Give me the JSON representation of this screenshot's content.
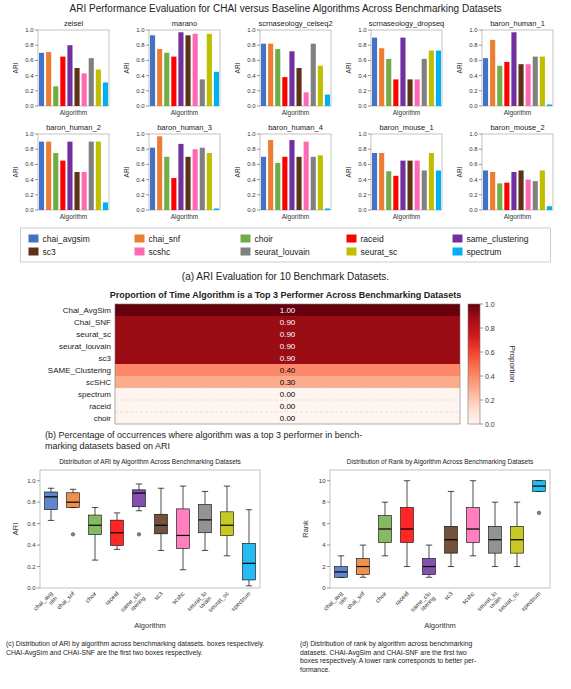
{
  "chart_data": [
    {
      "type": "bar",
      "title": "ARI Performance Evaluation for CHAI versus Baseline Algorithms Across Benchmarking Datasets",
      "caption": "(a) ARI Evaluation for 10 Benchmark Datasets.",
      "x_label": "Algorithm",
      "y_label": "ARI",
      "categories": [
        "chai_avgsim",
        "chai_snf",
        "choir",
        "raceid",
        "same_clustering",
        "sc3",
        "scshc",
        "seurat_louvain",
        "seurat_sc",
        "spectrum"
      ],
      "colors": [
        "#4472C4",
        "#ED7D31",
        "#70AD47",
        "#FF0000",
        "#7030A0",
        "#5C3317",
        "#FF69B4",
        "#808080",
        "#BFBF00",
        "#00B0F0"
      ],
      "ylim": [
        0,
        1.0
      ],
      "yticks": [
        {
          "value": 0.0,
          "label": "0.0"
        },
        0.2,
        0.4,
        0.6,
        0.8,
        {
          "value": 1.0,
          "label": "1.0"
        }
      ],
      "tick_labels": "y",
      "legend": "bottom",
      "panels": [
        {
          "title": "zeisel",
          "values": [
            0.7,
            0.71,
            0.26,
            0.65,
            0.8,
            0.5,
            0.43,
            0.63,
            0.48,
            0.31
          ]
        },
        {
          "title": "marano",
          "values": [
            0.93,
            0.75,
            0.7,
            0.65,
            0.97,
            0.93,
            0.95,
            0.35,
            0.95,
            0.45
          ]
        },
        {
          "title": "scrnaseology_celseq2",
          "values": [
            0.82,
            0.82,
            0.75,
            0.38,
            0.72,
            0.5,
            0.18,
            0.82,
            0.53,
            0.15
          ]
        },
        {
          "title": "scrnaseology_dropseq",
          "values": [
            0.9,
            0.76,
            0.62,
            0.35,
            0.9,
            0.35,
            0.35,
            0.62,
            0.73,
            0.73
          ]
        },
        {
          "title": "baron_human_1",
          "values": [
            0.63,
            0.87,
            0.53,
            0.58,
            0.97,
            0.55,
            0.55,
            0.65,
            0.65,
            0.02
          ]
        },
        {
          "title": "baron_human_2",
          "values": [
            0.9,
            0.9,
            0.75,
            0.65,
            0.9,
            0.5,
            0.5,
            0.9,
            0.9,
            0.1
          ]
        },
        {
          "title": "baron_human_3",
          "values": [
            0.82,
            0.97,
            0.7,
            0.42,
            0.87,
            0.7,
            0.8,
            0.82,
            0.75,
            0.02
          ]
        },
        {
          "title": "baron_human_4",
          "values": [
            0.7,
            0.92,
            0.62,
            0.7,
            0.92,
            0.7,
            0.9,
            0.7,
            0.72,
            0.02
          ]
        },
        {
          "title": "baron_mouse_1",
          "values": [
            0.75,
            0.75,
            0.51,
            0.45,
            0.65,
            0.65,
            0.65,
            0.52,
            0.75,
            0.52
          ]
        },
        {
          "title": "baron_mouse_2",
          "values": [
            0.52,
            0.5,
            0.35,
            0.36,
            0.5,
            0.52,
            0.4,
            0.38,
            0.52,
            0.05
          ]
        }
      ]
    },
    {
      "type": "heatmap",
      "title": "Proportion of Time Algorithm is a Top 3 Performer Across Benchmarking Datasets",
      "caption": "(b) Percentage of occurrences where algorithm was a top 3 performer in bench-\nmarking datasets based on ARI",
      "categories": [
        "Chai_AvgSim",
        "Chai_SNF",
        "seurat_sc",
        "seurat_louvain",
        "sc3",
        "SAME_Clustering",
        "scSHC",
        "spectrum",
        "raceid",
        "choir"
      ],
      "values": [
        1.0,
        0.9,
        0.9,
        0.9,
        0.9,
        0.4,
        0.3,
        0.0,
        0.0,
        0.0
      ],
      "value_labels": [
        "1.00",
        "0.90",
        "0.90",
        "0.90",
        "0.90",
        "0.40",
        "0.30",
        "0.00",
        "0.00",
        "0.00"
      ],
      "data_labels": true,
      "color_bar": {
        "label": "Proportion",
        "range": [
          0.0,
          1.0
        ],
        "ticks": [
          {
            "value": 0.0,
            "label": "0.0"
          },
          0.2,
          0.4,
          0.6,
          0.8,
          {
            "value": 1.0,
            "label": "1.0"
          }
        ]
      }
    },
    {
      "type": "box",
      "title": "Distribution of ARI by Algorithm Across Benchmarking Datasets",
      "caption": "(c) Distribution of ARI by algorithm across benchmarking datasets. boxes respectively.\nCHAI-AvgSim and CHAI-SNF are the first two boxes respectively.",
      "x_label": "Algorithm",
      "y_label": "ARI",
      "categories": [
        "chai_avg\nsim",
        "chai_snf",
        "choir",
        "raceid",
        "same_clu\nstering",
        "sc3",
        "scshc",
        "seurat_lo\nuvain",
        "seurat_sc",
        "spectrum"
      ],
      "colors": [
        "#4472C4",
        "#ED7D31",
        "#70AD47",
        "#FF0000",
        "#7030A0",
        "#5C3317",
        "#FF69B4",
        "#808080",
        "#BFBF00",
        "#00B0F0"
      ],
      "ylim": [
        0,
        1.1
      ],
      "yticks": [
        {
          "value": 0.0,
          "label": "0.0"
        },
        0.2,
        0.4,
        0.6,
        0.8,
        {
          "value": 1.0,
          "label": "1.0"
        }
      ],
      "whisker_low": [
        0.63,
        0.75,
        0.26,
        0.36,
        0.72,
        0.35,
        0.17,
        0.35,
        0.3,
        0.02
      ],
      "q1": [
        0.73,
        0.75,
        0.4975,
        0.3975,
        0.7575,
        0.505,
        0.37,
        0.515,
        0.49,
        0.075
      ],
      "median": [
        0.85,
        0.8,
        0.585,
        0.515,
        0.885,
        0.585,
        0.49,
        0.635,
        0.585,
        0.23
      ],
      "q3": [
        0.895,
        0.8875,
        0.68,
        0.6325,
        0.915,
        0.6875,
        0.7375,
        0.7775,
        0.71,
        0.415
      ],
      "whisker_high": [
        0.93,
        0.92,
        0.75,
        0.7,
        0.97,
        0.93,
        0.95,
        0.9,
        0.95,
        0.73
      ],
      "fliers": [
        [],
        [
          0.5
        ],
        [],
        [],
        [
          0.5
        ],
        [],
        [],
        [],
        [],
        []
      ]
    },
    {
      "type": "box",
      "title": "Distribution of Rank by Algorithm Across Benchmarking Datasets",
      "caption": "(d) Distribution of rank by algorithm across benchmarking\ndatasets. CHAI-AvgSim and CHAI-SNF are the first two\nboxes respectively. A lower rank corresponds to better per-\nformance.",
      "x_label": "Algorithm",
      "y_label": "Rank",
      "categories": [
        "chai_avg\nsim",
        "chai_snf",
        "choir",
        "raceid",
        "same_clu\nstering",
        "sc3",
        "scshc",
        "seurat_lo\nuvain",
        "seurat_sc",
        "spectrum"
      ],
      "colors": [
        "#4472C4",
        "#ED7D31",
        "#70AD47",
        "#FF0000",
        "#7030A0",
        "#5C3317",
        "#FF69B4",
        "#808080",
        "#BFBF00",
        "#00B0F0"
      ],
      "ylim": [
        0,
        11
      ],
      "yticks": [
        0,
        2,
        4,
        6,
        8,
        10
      ],
      "whisker_low": [
        1,
        1,
        3,
        2,
        1,
        2,
        3,
        2,
        2,
        9
      ],
      "q1": [
        1,
        1.25,
        4.25,
        4.25,
        1.25,
        3.25,
        4.25,
        3.25,
        3.25,
        9
      ],
      "median": [
        1.5,
        2,
        5.5,
        5.5,
        2,
        4.5,
        5.5,
        4.5,
        4.5,
        9.5
      ],
      "q3": [
        2,
        2.75,
        6.75,
        7.5,
        2.75,
        5.75,
        7.5,
        5.75,
        5.75,
        10
      ],
      "whisker_high": [
        3,
        4,
        8,
        10,
        4,
        9,
        10,
        8,
        8,
        10
      ],
      "fliers": [
        [],
        [],
        [],
        [],
        [],
        [],
        [],
        [],
        [],
        [
          7
        ]
      ]
    }
  ]
}
